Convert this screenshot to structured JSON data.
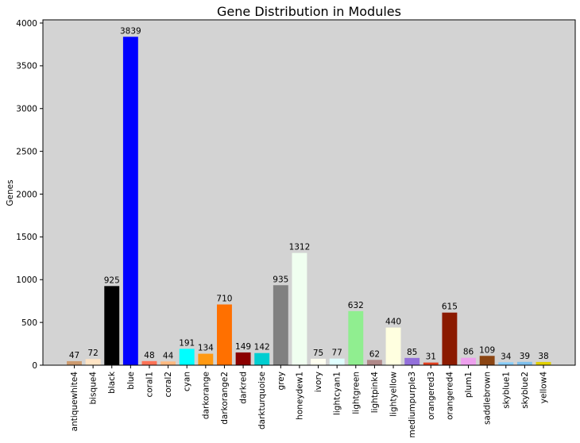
{
  "chart_data": {
    "type": "bar",
    "title": "Gene Distribution in Modules",
    "xlabel": "",
    "ylabel": "Genes",
    "ylim": [
      0,
      4000
    ],
    "yticks": [
      0,
      500,
      1000,
      1500,
      2000,
      2500,
      3000,
      3500,
      4000
    ],
    "grid": false,
    "background": "#d3d3d3",
    "categories": [
      "antiquewhite4",
      "bisque4",
      "black",
      "blue",
      "coral1",
      "coral2",
      "cyan",
      "darkorange",
      "darkorange2",
      "darkred",
      "darkturquoise",
      "grey",
      "honeydew1",
      "ivory",
      "lightcyan1",
      "lightgreen",
      "lightpink4",
      "lightyellow",
      "mediumpurple3",
      "orangered3",
      "orangered4",
      "plum1",
      "saddlebrown",
      "skyblue1",
      "skyblue2",
      "yellow4"
    ],
    "values": [
      47,
      72,
      925,
      3839,
      48,
      44,
      191,
      134,
      710,
      149,
      142,
      935,
      1312,
      75,
      77,
      632,
      62,
      440,
      85,
      31,
      615,
      86,
      109,
      34,
      39,
      38
    ],
    "colors": [
      "#cd9b6f",
      "#ffe4c4",
      "#000000",
      "#0000ff",
      "#ff7256",
      "#ffb980",
      "#00ffff",
      "#ff9912",
      "#ff7000",
      "#8b0000",
      "#00ced1",
      "#808080",
      "#f0fff0",
      "#fffff0",
      "#e0ffff",
      "#90ee90",
      "#b08888",
      "#ffffe0",
      "#9370db",
      "#e04020",
      "#8b1a00",
      "#eea0ee",
      "#8b4513",
      "#87ceff",
      "#7ec0ee",
      "#e0d000"
    ]
  }
}
